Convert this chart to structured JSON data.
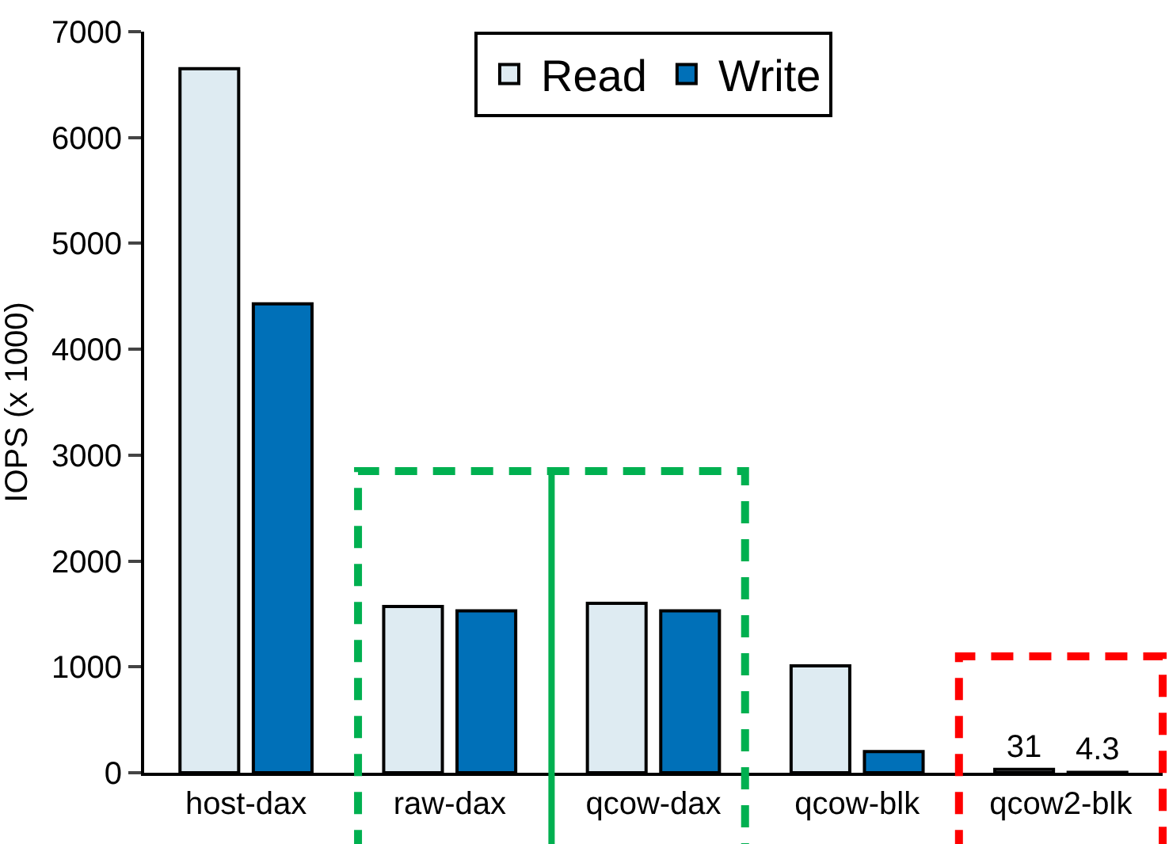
{
  "chart_data": {
    "type": "bar",
    "ylabel": "IOPS (x 1000)",
    "categories": [
      "host-dax",
      "raw-dax",
      "qcow-dax",
      "qcow-blk",
      "qcow2-blk"
    ],
    "series": [
      {
        "name": "Read",
        "color": "#deebf2",
        "values": [
          6650,
          1570,
          1600,
          1010,
          31
        ],
        "value_labels": [
          null,
          null,
          null,
          null,
          "31"
        ]
      },
      {
        "name": "Write",
        "color": "#0070b8",
        "values": [
          4430,
          1530,
          1530,
          200,
          4.3
        ],
        "value_labels": [
          null,
          null,
          null,
          null,
          "4.3"
        ]
      }
    ],
    "ylim": [
      0,
      7000
    ],
    "yticks": [
      0,
      1000,
      2000,
      3000,
      4000,
      5000,
      6000,
      7000
    ],
    "grid": false,
    "legend": "top"
  }
}
